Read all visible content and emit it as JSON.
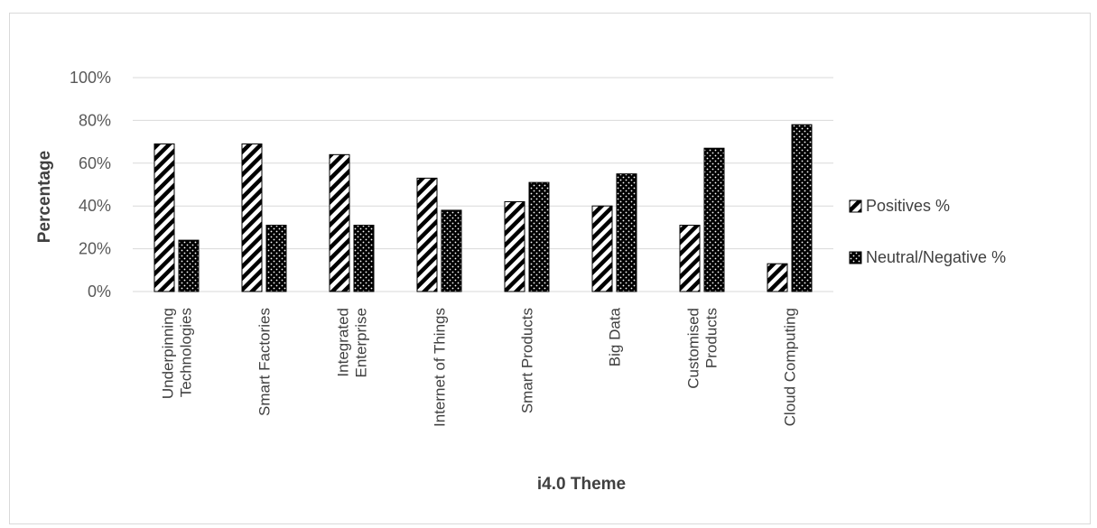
{
  "chart_data": {
    "type": "bar",
    "categories": [
      [
        "Underpinning",
        "Technologies"
      ],
      [
        "Smart Factories"
      ],
      [
        "Integrated",
        "Enterprise"
      ],
      [
        "Internet of Things"
      ],
      [
        "Smart Products"
      ],
      [
        "Big Data"
      ],
      [
        "Customised",
        "Products"
      ],
      [
        "Cloud Computing"
      ]
    ],
    "series": [
      {
        "name": "Positives %",
        "pattern": "diagonal-stripes",
        "values": [
          69,
          69,
          64,
          53,
          42,
          40,
          31,
          13
        ]
      },
      {
        "name": "Neutral/Negative %",
        "pattern": "dots-on-black",
        "values": [
          24,
          31,
          31,
          38,
          51,
          55,
          67,
          78
        ]
      }
    ],
    "title": "",
    "xlabel": "i4.0 Theme",
    "ylabel": "Percentage",
    "ylim": [
      0,
      100
    ],
    "yticks": [
      "0%",
      "20%",
      "40%",
      "60%",
      "80%",
      "100%"
    ],
    "grid": true,
    "legend_position": "right",
    "colors": {
      "grid": "#d9d9d9",
      "bar_fill": "#000000",
      "bar_stroke": "#000000",
      "text": "#404040"
    }
  }
}
